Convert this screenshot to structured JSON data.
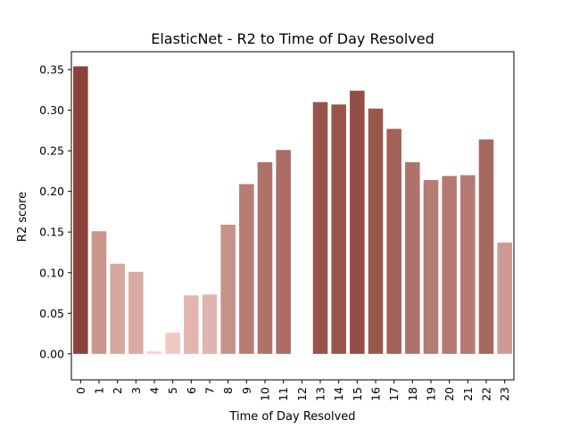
{
  "chart_data": {
    "type": "bar",
    "title": "ElasticNet - R2 to Time of Day Resolved",
    "xlabel": "Time of Day Resolved",
    "ylabel": "R2 score",
    "categories": [
      "0",
      "1",
      "2",
      "3",
      "4",
      "5",
      "6",
      "7",
      "8",
      "9",
      "10",
      "11",
      "12",
      "13",
      "14",
      "15",
      "16",
      "17",
      "18",
      "19",
      "20",
      "21",
      "22",
      "23"
    ],
    "values": [
      0.354,
      0.151,
      0.111,
      0.101,
      0.003,
      0.026,
      0.072,
      0.073,
      0.159,
      0.209,
      0.236,
      0.251,
      0.0,
      0.31,
      0.307,
      0.324,
      0.302,
      0.277,
      0.236,
      0.214,
      0.219,
      0.22,
      0.264,
      0.137
    ],
    "ylim": [
      -0.032,
      0.372
    ],
    "yticks": [
      "0.00",
      "0.05",
      "0.10",
      "0.15",
      "0.20",
      "0.25",
      "0.30",
      "0.35"
    ],
    "grid": false,
    "colors": {
      "palette_low": "#f8d3cd",
      "palette_high": "#8a4238",
      "axes": "#000000"
    }
  }
}
